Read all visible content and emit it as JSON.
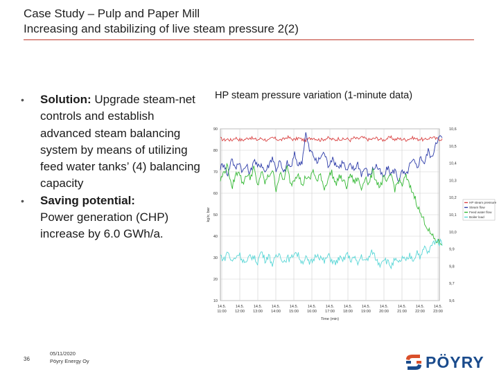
{
  "header": {
    "line1": "Case Study – Pulp and Paper Mill",
    "line2": "Increasing and stabilizing of live steam pressure 2(2)"
  },
  "bullets": [
    {
      "label": "Solution:",
      "text": " Upgrade steam-net controls and establish advanced steam balancing system by means of utilizing feed water tanks’ (4) balancing capacity"
    },
    {
      "label": "Saving potential:",
      "text": " Power generation (CHP) increase by 6.0 GWh/a."
    }
  ],
  "chart_title": "HP steam pressure variation (1-minute data)",
  "chart_data": {
    "type": "line",
    "title": "HP steam pressure variation (1-minute data)",
    "xlabel": "Time (min)",
    "ylabel": "kg/s; bar",
    "x_ticks": [
      {
        "date": "14.5.",
        "time": "11:00"
      },
      {
        "date": "14.5.",
        "time": "12:00"
      },
      {
        "date": "14.5.",
        "time": "13:00"
      },
      {
        "date": "14.5.",
        "time": "14:00"
      },
      {
        "date": "14.5.",
        "time": "15:00"
      },
      {
        "date": "14.5.",
        "time": "16:00"
      },
      {
        "date": "14.5.",
        "time": "17:00"
      },
      {
        "date": "14.5.",
        "time": "18:00"
      },
      {
        "date": "14.5.",
        "time": "19:00"
      },
      {
        "date": "14.5.",
        "time": "20:00"
      },
      {
        "date": "14.5.",
        "time": "21:00"
      },
      {
        "date": "14.5.",
        "time": "22:00"
      },
      {
        "date": "14.5.",
        "time": "23:00"
      }
    ],
    "y_left_ticks": [
      "90",
      "80",
      "70",
      "60",
      "50",
      "40",
      "30",
      "20",
      "10"
    ],
    "y_right_ticks": [
      "10,6",
      "10,5",
      "10,4",
      "10,3",
      "10,2",
      "10,1",
      "10,0",
      "9,9",
      "9,8",
      "9,7",
      "9,6"
    ],
    "ylim_left": [
      10,
      90
    ],
    "ylim_right": [
      9.6,
      10.6
    ],
    "grid": true,
    "legend_position": "right",
    "series": [
      {
        "name": "HP steam pressure",
        "color": "#d94040",
        "values": [
          85.5,
          84.8,
          85.2,
          84.6,
          85.9,
          85.1,
          84.7,
          85.4,
          86.0,
          85.2,
          84.9,
          85.6,
          85.0,
          84.5,
          85.8,
          85.3,
          84.8,
          85.1,
          86.2,
          85.4,
          84.9,
          85.7,
          85.0,
          84.6,
          85.5,
          85.9,
          85.2,
          84.8,
          85.3,
          85.7,
          85.1,
          84.9,
          85.6,
          85.0,
          85.4,
          84.7,
          85.8,
          85.2,
          86.0,
          85.5,
          84.9,
          85.3,
          85.7,
          85.1,
          84.8,
          85.6,
          85.9,
          85.0,
          85.4,
          85.2,
          84.9,
          85.5,
          85.8,
          85.1,
          85.3,
          84.7,
          85.6,
          86.1,
          85.4,
          85.2
        ]
      },
      {
        "name": "Steam flow",
        "color": "#2b3aa8",
        "values": [
          72,
          74,
          68,
          77,
          71,
          75,
          70,
          73,
          69,
          76,
          72,
          74,
          70,
          73,
          77,
          71,
          75,
          69,
          74,
          72,
          78,
          73,
          75,
          88,
          80,
          78,
          74,
          77,
          79,
          73,
          76,
          74,
          72,
          75,
          70,
          73,
          71,
          74,
          69,
          72,
          68,
          71,
          73,
          70,
          67,
          72,
          69,
          71,
          66,
          70,
          68,
          73,
          75,
          72,
          77,
          74,
          80,
          76,
          84,
          86
        ]
      },
      {
        "name": "Feed water flow",
        "color": "#33b833",
        "values": [
          66,
          70,
          73,
          62,
          68,
          71,
          64,
          69,
          67,
          72,
          63,
          70,
          65,
          68,
          71,
          62,
          69,
          66,
          72,
          64,
          67,
          70,
          63,
          68,
          66,
          71,
          65,
          69,
          62,
          67,
          70,
          64,
          68,
          66,
          63,
          69,
          65,
          67,
          62,
          68,
          64,
          70,
          66,
          63,
          67,
          65,
          69,
          62,
          66,
          64,
          68,
          63,
          60,
          55,
          50,
          47,
          43,
          40,
          38,
          37
        ]
      },
      {
        "name": "Boiler load",
        "color": "#58d6d6",
        "values": [
          31,
          29,
          33,
          28,
          30,
          32,
          29,
          27,
          31,
          30,
          28,
          33,
          29,
          31,
          27,
          30,
          32,
          28,
          30,
          29,
          33,
          31,
          28,
          30,
          27,
          29,
          32,
          30,
          28,
          31,
          29,
          27,
          30,
          28,
          32,
          29,
          30,
          27,
          31,
          28,
          30,
          33,
          29,
          27,
          30,
          28,
          26,
          29,
          27,
          30,
          28,
          31,
          29,
          33,
          30,
          35,
          32,
          36,
          38,
          37
        ]
      }
    ]
  },
  "footer": {
    "page_number": "36",
    "date": "05/11/2020",
    "company": "Pöyry Energy Oy"
  },
  "logo": {
    "text": "PÖYRY",
    "color": "#1a4b8c",
    "accent": "#d94f2a"
  }
}
